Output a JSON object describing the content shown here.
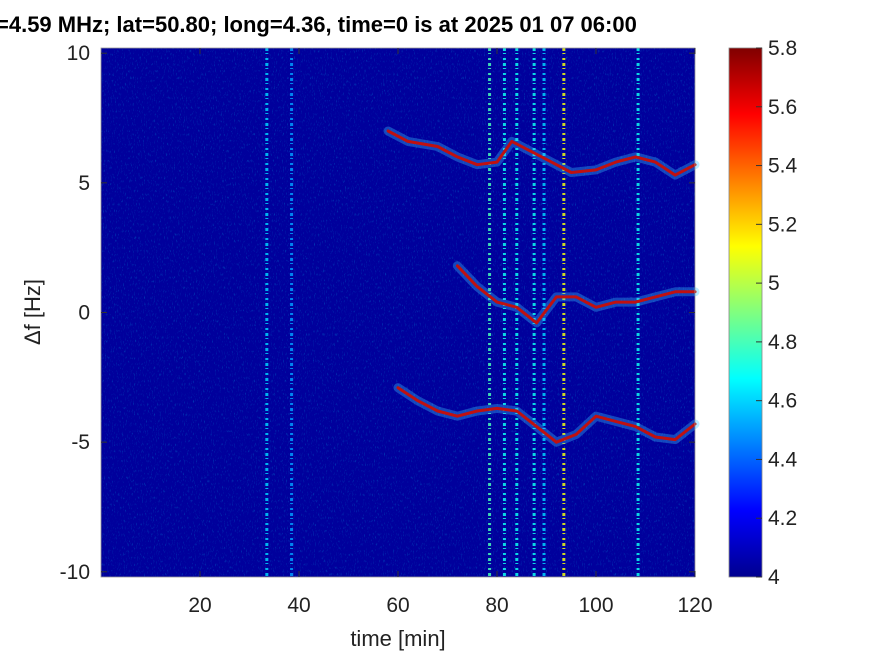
{
  "chart_data": {
    "type": "heatmap",
    "title": "=4.59 MHz;  lat=50.80; long=4.36, time=0 is at 2025 01 07 06:00",
    "xlabel": "time [min]",
    "ylabel": "Δf [Hz]",
    "xlim": [
      0,
      120
    ],
    "ylim": [
      -10.2,
      10.2
    ],
    "x_ticks": [
      20,
      40,
      60,
      80,
      100,
      120
    ],
    "y_ticks": [
      10,
      5,
      0,
      -5,
      -10
    ],
    "colorbar": {
      "min": 4,
      "max": 5.8,
      "ticks": [
        5.8,
        5.6,
        5.4,
        5.2,
        5,
        4.8,
        4.6,
        4.4,
        4.2,
        4
      ]
    },
    "background_level": 4.05,
    "vertical_streaks": [
      {
        "x": 33.5,
        "level": 4.6
      },
      {
        "x": 38.5,
        "level": 4.5
      },
      {
        "x": 78.5,
        "level": 4.8
      },
      {
        "x": 81.5,
        "level": 4.7
      },
      {
        "x": 84,
        "level": 4.7
      },
      {
        "x": 87.5,
        "level": 4.7
      },
      {
        "x": 89.5,
        "level": 4.6
      },
      {
        "x": 93.5,
        "level": 5.1
      },
      {
        "x": 108.5,
        "level": 4.7
      }
    ],
    "series": [
      {
        "x": [
          58,
          62,
          68,
          72,
          76,
          80,
          83,
          87,
          91,
          95,
          100,
          104,
          108,
          112,
          116,
          120
        ],
        "y": [
          7.0,
          6.6,
          6.4,
          6.0,
          5.7,
          5.8,
          6.6,
          6.2,
          5.8,
          5.4,
          5.5,
          5.8,
          6.0,
          5.8,
          5.3,
          5.7
        ]
      },
      {
        "x": [
          72,
          76,
          80,
          84,
          88,
          92,
          96,
          100,
          104,
          108,
          112,
          116,
          120
        ],
        "y": [
          1.8,
          1.0,
          0.4,
          0.2,
          -0.4,
          0.6,
          0.6,
          0.2,
          0.4,
          0.4,
          0.6,
          0.8,
          0.8
        ]
      },
      {
        "x": [
          60,
          64,
          68,
          72,
          76,
          80,
          84,
          88,
          92,
          96,
          100,
          104,
          108,
          112,
          116,
          120
        ],
        "y": [
          -2.9,
          -3.4,
          -3.8,
          -4.0,
          -3.8,
          -3.7,
          -3.8,
          -4.4,
          -5.0,
          -4.7,
          -4.0,
          -4.2,
          -4.4,
          -4.8,
          -4.9,
          -4.3
        ]
      }
    ]
  }
}
